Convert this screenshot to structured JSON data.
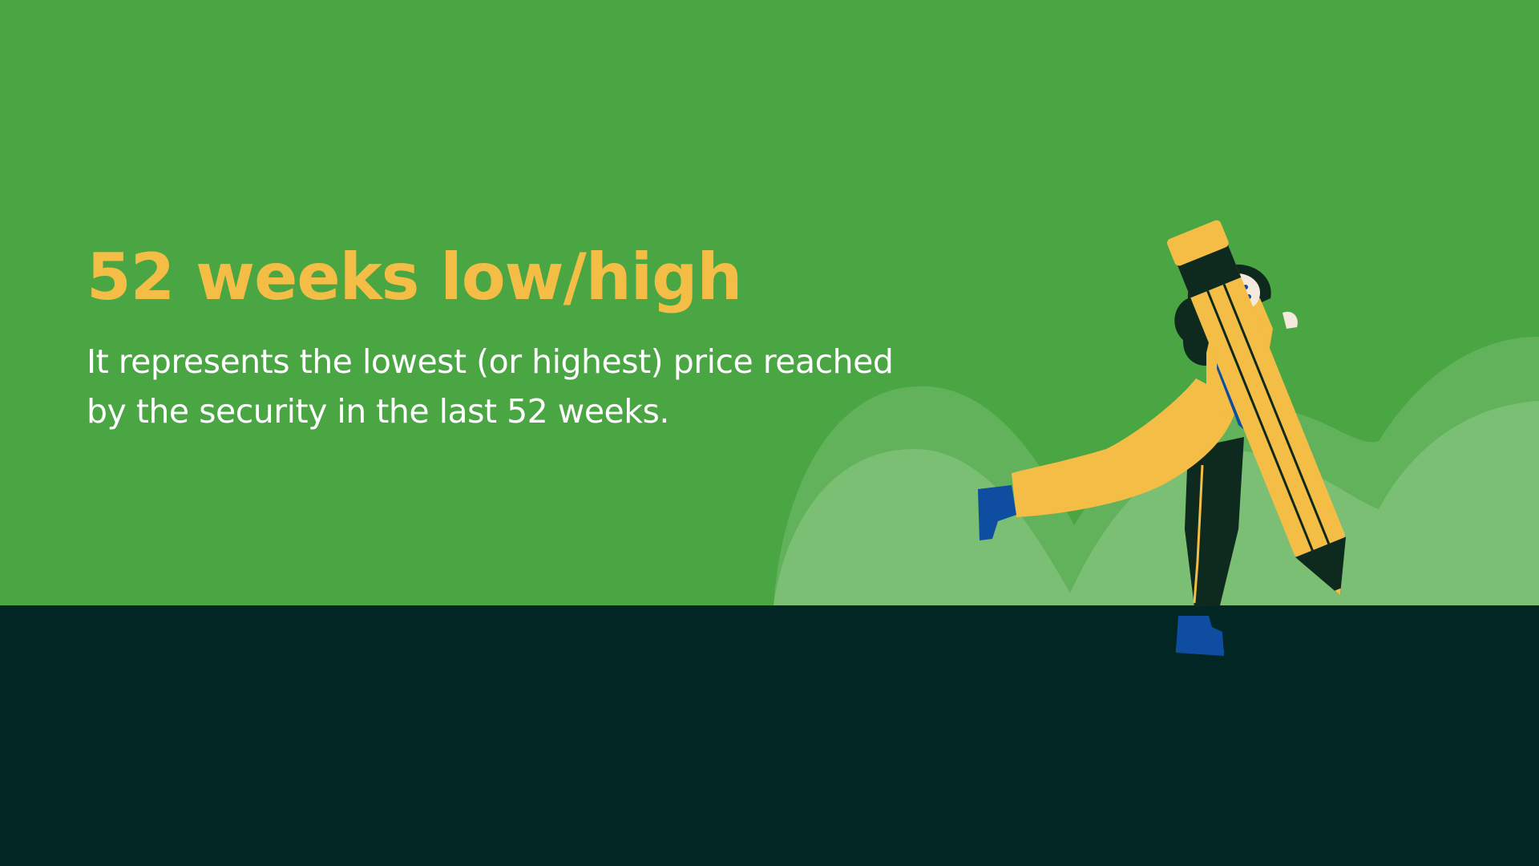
{
  "slide": {
    "title": "52 weeks low/high",
    "body_lines": [
      "It represents the lowest (or highest) price reached",
      "by the security in the last 52 weeks."
    ]
  },
  "illustration": {
    "icon_name": "woman-carrying-pencil-icon"
  },
  "colors": {
    "background_green": "#4AA543",
    "ground_dark": "#022624",
    "hill_back": "#62B25C",
    "hill_front": "#7ABF74",
    "title": "#F4BD45",
    "body_text": "#FFFFFF",
    "pencil": "#F4BD45",
    "clothing_blue": "#0F4DA1",
    "dark": "#0E2A1E"
  }
}
